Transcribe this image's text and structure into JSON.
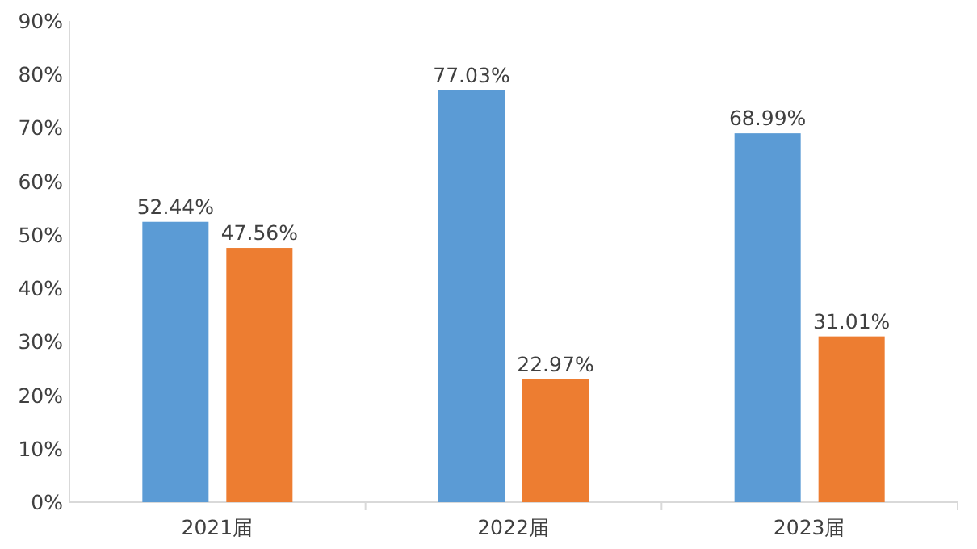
{
  "chart_data": {
    "type": "bar",
    "categories": [
      "2021届",
      "2022届",
      "2023届"
    ],
    "series": [
      {
        "color": "#5b9bd5",
        "values": [
          52.44,
          77.03,
          68.99
        ],
        "value_labels": [
          "52.44%",
          "77.03%",
          "68.99%"
        ]
      },
      {
        "color": "#ed7d31",
        "values": [
          47.56,
          22.97,
          31.01
        ],
        "value_labels": [
          "47.56%",
          "22.97%",
          "31.01%"
        ]
      }
    ],
    "ylim": [
      0,
      90
    ],
    "yticks": [
      {
        "value": 0,
        "label": "0%"
      },
      {
        "value": 10,
        "label": "10%"
      },
      {
        "value": 20,
        "label": "20%"
      },
      {
        "value": 30,
        "label": "30%"
      },
      {
        "value": 40,
        "label": "40%"
      },
      {
        "value": 50,
        "label": "50%"
      },
      {
        "value": 60,
        "label": "60%"
      },
      {
        "value": 70,
        "label": "70%"
      },
      {
        "value": 80,
        "label": "80%"
      },
      {
        "value": 90,
        "label": "90%"
      }
    ],
    "grid": false
  }
}
